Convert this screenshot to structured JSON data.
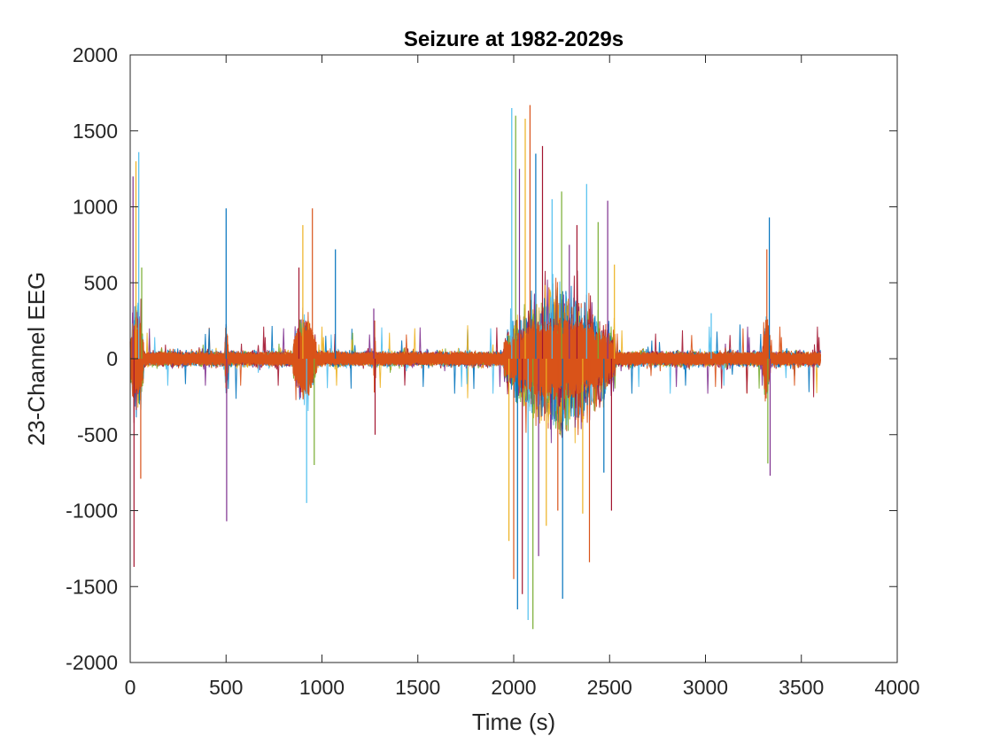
{
  "chart_data": {
    "type": "line",
    "title": "Seizure at 1982-2029s",
    "xlabel": "Time (s)",
    "ylabel": "23-Channel EEG",
    "xlim": [
      0,
      4000
    ],
    "ylim": [
      -2000,
      2000
    ],
    "x_ticks": [
      0,
      500,
      1000,
      1500,
      2000,
      2500,
      3000,
      3500,
      4000
    ],
    "y_ticks": [
      -2000,
      -1500,
      -1000,
      -500,
      0,
      500,
      1000,
      1500,
      2000
    ],
    "x_tick_labels": [
      "0",
      "500",
      "1000",
      "1500",
      "2000",
      "2500",
      "3000",
      "3500",
      "4000"
    ],
    "y_tick_labels": [
      "-2000",
      "-1500",
      "-1000",
      "-500",
      "0",
      "500",
      "1000",
      "1500",
      "2000"
    ],
    "grid": false,
    "box": true,
    "num_channels": 23,
    "time_range": [
      0,
      3600
    ],
    "series_colors": [
      "#0072BD",
      "#D95319",
      "#EDB120",
      "#7E2F8E",
      "#77AC30",
      "#4DBEEE",
      "#A2142F"
    ],
    "baseline_band": [
      -150,
      150
    ],
    "seizure_interval": [
      1982,
      2029
    ],
    "envelope": [
      {
        "t": [
          0,
          70
        ],
        "ymax": 1370,
        "ymin": -1370
      },
      {
        "t": [
          495,
          510
        ],
        "ymax": 1000,
        "ymin": -1070
      },
      {
        "t": [
          850,
          970
        ],
        "ymax": 990,
        "ymin": -950
      },
      {
        "t": [
          1270,
          1280
        ],
        "ymax": 330,
        "ymin": -560
      },
      {
        "t": [
          1950,
          2530
        ],
        "ymax": 1670,
        "ymin": -1780
      },
      {
        "t": [
          3300,
          3340
        ],
        "ymax": 930,
        "ymin": -770
      }
    ],
    "spikes": [
      {
        "t": 15,
        "y": 1200
      },
      {
        "t": 20,
        "y": -1370
      },
      {
        "t": 30,
        "y": 1300
      },
      {
        "t": 45,
        "y": 1360
      },
      {
        "t": 55,
        "y": -790
      },
      {
        "t": 60,
        "y": 600
      },
      {
        "t": 500,
        "y": 990
      },
      {
        "t": 503,
        "y": -1070
      },
      {
        "t": 880,
        "y": 600
      },
      {
        "t": 900,
        "y": 880
      },
      {
        "t": 920,
        "y": -950
      },
      {
        "t": 950,
        "y": 990
      },
      {
        "t": 960,
        "y": -700
      },
      {
        "t": 1070,
        "y": 720
      },
      {
        "t": 1270,
        "y": 330
      },
      {
        "t": 1277,
        "y": -500
      },
      {
        "t": 1975,
        "y": -1200
      },
      {
        "t": 1990,
        "y": 1650
      },
      {
        "t": 2000,
        "y": -1450
      },
      {
        "t": 2010,
        "y": 1600
      },
      {
        "t": 2020,
        "y": -1650
      },
      {
        "t": 2030,
        "y": 1250
      },
      {
        "t": 2045,
        "y": -1550
      },
      {
        "t": 2060,
        "y": 1580
      },
      {
        "t": 2075,
        "y": -1720
      },
      {
        "t": 2085,
        "y": 1670
      },
      {
        "t": 2100,
        "y": -1780
      },
      {
        "t": 2115,
        "y": 1350
      },
      {
        "t": 2130,
        "y": -1300
      },
      {
        "t": 2150,
        "y": 1400
      },
      {
        "t": 2170,
        "y": -1100
      },
      {
        "t": 2200,
        "y": 1050
      },
      {
        "t": 2230,
        "y": -1000
      },
      {
        "t": 2250,
        "y": 1100
      },
      {
        "t": 2255,
        "y": -1580
      },
      {
        "t": 2290,
        "y": 750
      },
      {
        "t": 2330,
        "y": 880
      },
      {
        "t": 2360,
        "y": -1020
      },
      {
        "t": 2380,
        "y": 1150
      },
      {
        "t": 2395,
        "y": -1340
      },
      {
        "t": 2440,
        "y": 900
      },
      {
        "t": 2470,
        "y": -750
      },
      {
        "t": 2490,
        "y": 1040
      },
      {
        "t": 2510,
        "y": -1000
      },
      {
        "t": 2525,
        "y": 620
      },
      {
        "t": 3030,
        "y": 300
      },
      {
        "t": 3320,
        "y": 720
      },
      {
        "t": 3325,
        "y": -690
      },
      {
        "t": 3333,
        "y": 930
      },
      {
        "t": 3337,
        "y": -770
      }
    ]
  }
}
